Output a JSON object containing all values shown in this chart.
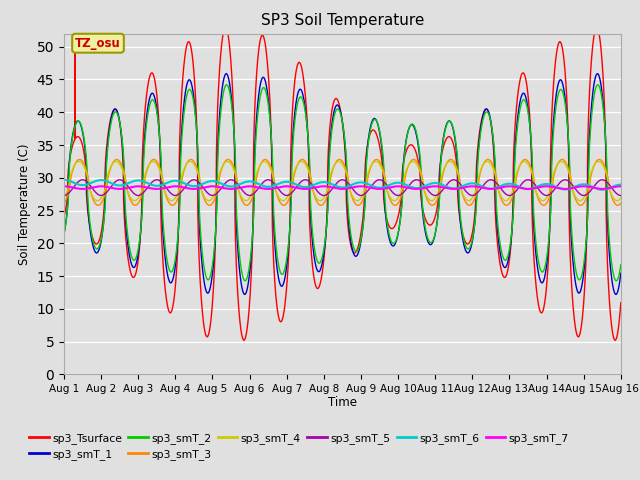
{
  "title": "SP3 Soil Temperature",
  "xlabel": "Time",
  "ylabel": "Soil Temperature (C)",
  "ylim": [
    0,
    52
  ],
  "yticks": [
    0,
    5,
    10,
    15,
    20,
    25,
    30,
    35,
    40,
    45,
    50
  ],
  "bg_color": "#e0e0e0",
  "plot_bg_color": "#e0e0e0",
  "annotation_text": "TZ_osu",
  "series_colors": {
    "sp3_Tsurface": "#ff0000",
    "sp3_smT_1": "#0000cc",
    "sp3_smT_2": "#00cc00",
    "sp3_smT_3": "#ff8800",
    "sp3_smT_4": "#cccc00",
    "sp3_smT_5": "#aa00aa",
    "sp3_smT_6": "#00cccc",
    "sp3_smT_7": "#ff00ff"
  },
  "x_tick_labels": [
    "Aug 1",
    "Aug 2",
    "Aug 3",
    "Aug 4",
    "Aug 5",
    "Aug 6",
    "Aug 7",
    "Aug 8",
    "Aug 9",
    "Aug 10",
    "Aug 11",
    "Aug 12",
    "Aug 13",
    "Aug 14",
    "Aug 15",
    "Aug 16"
  ],
  "days": 15
}
